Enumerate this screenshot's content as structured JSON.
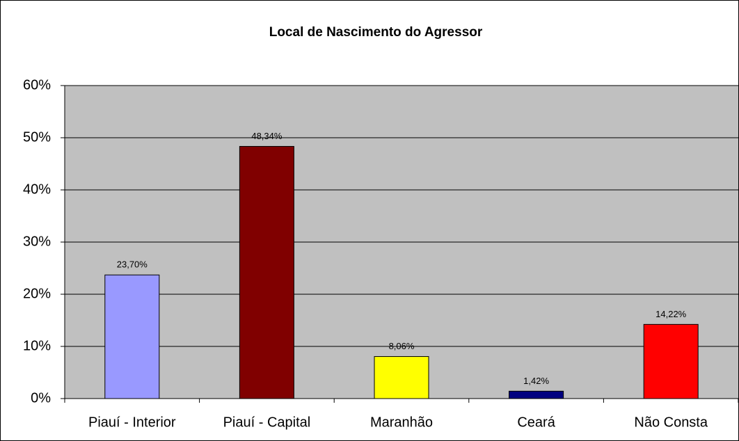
{
  "chart_data": {
    "type": "bar",
    "title": "Local de Nascimento do Agressor",
    "categories": [
      "Piauí - Interior",
      "Piauí - Capital",
      "Maranhão",
      "Ceará",
      "Não Consta"
    ],
    "values": [
      23.7,
      48.34,
      8.06,
      1.42,
      14.22
    ],
    "value_labels": [
      "23,70%",
      "48,34%",
      "8,06%",
      "1,42%",
      "14,22%"
    ],
    "colors": [
      "#9999ff",
      "#800000",
      "#ffff00",
      "#000080",
      "#ff0000"
    ],
    "ylim": [
      0,
      60
    ],
    "yticks": [
      {
        "value": 0,
        "label": "0%"
      },
      {
        "value": 10,
        "label": "10%"
      },
      {
        "value": 20,
        "label": "20%"
      },
      {
        "value": 30,
        "label": "30%"
      },
      {
        "value": 40,
        "label": "40%"
      },
      {
        "value": 50,
        "label": "50%"
      },
      {
        "value": 60,
        "label": "60%"
      }
    ],
    "grid": true
  }
}
